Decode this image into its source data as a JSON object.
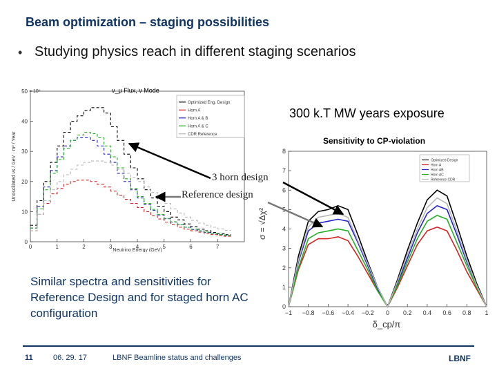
{
  "slide": {
    "title": "Beam optimization – staging possibilities",
    "bullet": "Studying physics reach in different staging scenarios",
    "exposure_label": "300 k.T MW years exposure",
    "annotation_3horn": "3 horn design",
    "annotation_reference": "Reference design",
    "summary": "Similar spectra and sensitivities for Reference Design and for staged horn AC configuration"
  },
  "footer": {
    "slide_number": "11",
    "date": "06. 29. 17",
    "talk": "LBNF Beamline status and challenges",
    "logo": "LBNF"
  },
  "colors": {
    "title": "#0f3466",
    "optimized": "#000000",
    "horn_a": "#d62020",
    "horn_ab": "#2222c8",
    "horn_ac": "#22b022",
    "cdr_reference": "#b8b8b8"
  },
  "chart_data": [
    {
      "type": "line",
      "title": "ν_μ Flux, ν Mode",
      "xlabel": "Neutrino Energy (GeV)",
      "ylabel": "Unoscillated νs / GeV · m² / Year",
      "yscale_label": "× 10⁶",
      "xlim": [
        0,
        8
      ],
      "ylim": [
        0,
        55
      ],
      "x_ticks": [
        "0",
        "1",
        "2",
        "3",
        "4",
        "5",
        "6",
        "7"
      ],
      "y_ticks": [
        "0",
        "10",
        "20",
        "30",
        "40",
        "50"
      ],
      "legend_position": "top-right",
      "x": [
        0.125,
        0.375,
        0.625,
        0.875,
        1.125,
        1.375,
        1.625,
        1.875,
        2.125,
        2.375,
        2.625,
        2.875,
        3.125,
        3.375,
        3.625,
        3.875,
        4.125,
        4.375,
        4.625,
        4.875,
        5.125,
        5.375,
        5.625,
        5.875,
        6.125,
        6.375,
        6.625,
        6.875,
        7.125,
        7.375
      ],
      "series": [
        {
          "name": "Optimized Eng. Design",
          "color": "#000000",
          "values": [
            6,
            15,
            22,
            29,
            35,
            40,
            44,
            46,
            48,
            49,
            49,
            47,
            42,
            37,
            32,
            27,
            23,
            19,
            16,
            13,
            11,
            9,
            8,
            6.5,
            5.5,
            4.6,
            4,
            3.4,
            3,
            2.6
          ]
        },
        {
          "name": "Horn A",
          "color": "#d62020",
          "values": [
            4,
            10,
            14,
            17.5,
            19.5,
            21,
            22,
            22.5,
            22.5,
            22,
            21,
            20,
            18.5,
            17,
            15.5,
            14,
            12.5,
            11,
            9.5,
            8.3,
            7.2,
            6.2,
            5.3,
            4.6,
            4,
            3.5,
            3,
            2.6,
            2.3,
            2
          ]
        },
        {
          "name": "Horn A & B",
          "color": "#2222c8",
          "values": [
            5,
            13,
            20,
            26,
            31,
            35,
            37,
            38,
            38,
            37,
            35,
            32,
            29,
            25,
            22,
            19,
            16,
            13.5,
            11.5,
            9.8,
            8.4,
            7.2,
            6.2,
            5.3,
            4.5,
            3.9,
            3.4,
            3,
            2.6,
            2.3
          ]
        },
        {
          "name": "Horn A & C",
          "color": "#22b022",
          "values": [
            5,
            12,
            19,
            25,
            30,
            34,
            37,
            39,
            40,
            39.5,
            38,
            35,
            31,
            27,
            23,
            19.5,
            16.5,
            14,
            11.8,
            10,
            8.5,
            7.3,
            6.2,
            5.3,
            4.6,
            4,
            3.5,
            3,
            2.6,
            2.3
          ]
        },
        {
          "name": "CDR Reference",
          "color": "#b8b8b8",
          "values": [
            4,
            10,
            15,
            19,
            22,
            24.5,
            26.5,
            28,
            29,
            29.5,
            29.5,
            29,
            28,
            26.5,
            25,
            23.5,
            22,
            20,
            18,
            16,
            14,
            12,
            10.5,
            9,
            7.8,
            6.8,
            6,
            5.3,
            4.7,
            4.2
          ]
        }
      ]
    },
    {
      "type": "line",
      "title": "Sensitivity to CP-violation",
      "xlabel": "δ_cp/π",
      "ylabel": "σ = √Δχ²",
      "xlim": [
        -1,
        1
      ],
      "ylim": [
        0,
        8
      ],
      "x_ticks": [
        "−1",
        "−0.8",
        "−0.6",
        "−0.4",
        "−0.2",
        "0",
        "0.2",
        "0.4",
        "0.6",
        "0.8",
        "1"
      ],
      "y_ticks": [
        "0",
        "1",
        "2",
        "3",
        "4",
        "5",
        "6",
        "7",
        "8"
      ],
      "legend_position": "top-right",
      "x": [
        -1.0,
        -0.9,
        -0.8,
        -0.7,
        -0.6,
        -0.5,
        -0.4,
        -0.3,
        -0.2,
        -0.1,
        0.0,
        0.1,
        0.2,
        0.3,
        0.4,
        0.5,
        0.6,
        0.7,
        0.8,
        0.9,
        1.0
      ],
      "series": [
        {
          "name": "Optimized Design",
          "color": "#000000",
          "values": [
            0,
            2.6,
            4.4,
            4.9,
            5.0,
            5.2,
            5.0,
            3.7,
            2.3,
            1.0,
            0,
            1.4,
            2.9,
            4.3,
            5.5,
            6.0,
            5.7,
            4.2,
            2.6,
            1.2,
            0
          ]
        },
        {
          "name": "Horn A",
          "color": "#d62020",
          "values": [
            0,
            1.9,
            3.2,
            3.5,
            3.5,
            3.6,
            3.4,
            2.6,
            1.7,
            0.8,
            0,
            1.0,
            2.1,
            3.2,
            3.9,
            4.1,
            3.9,
            2.9,
            1.8,
            0.9,
            0
          ]
        },
        {
          "name": "Horn AB",
          "color": "#2222c8",
          "values": [
            0,
            2.3,
            3.9,
            4.3,
            4.4,
            4.5,
            4.4,
            3.3,
            2.1,
            0.9,
            0,
            1.2,
            2.5,
            3.8,
            4.8,
            5.2,
            5.0,
            3.7,
            2.3,
            1.1,
            0
          ]
        },
        {
          "name": "Horn AC",
          "color": "#22b022",
          "values": [
            0,
            2.0,
            3.5,
            3.8,
            3.9,
            4.0,
            3.9,
            2.9,
            1.9,
            0.8,
            0,
            1.1,
            2.3,
            3.5,
            4.4,
            4.7,
            4.5,
            3.3,
            2.1,
            1.0,
            0
          ]
        },
        {
          "name": "Reference CDR",
          "color": "#b8b8b8",
          "values": [
            0,
            2.4,
            4.1,
            4.6,
            4.7,
            4.8,
            4.6,
            3.4,
            2.2,
            1.0,
            0,
            1.3,
            2.7,
            4.0,
            5.1,
            5.6,
            5.3,
            3.9,
            2.4,
            1.1,
            0
          ]
        }
      ]
    }
  ]
}
